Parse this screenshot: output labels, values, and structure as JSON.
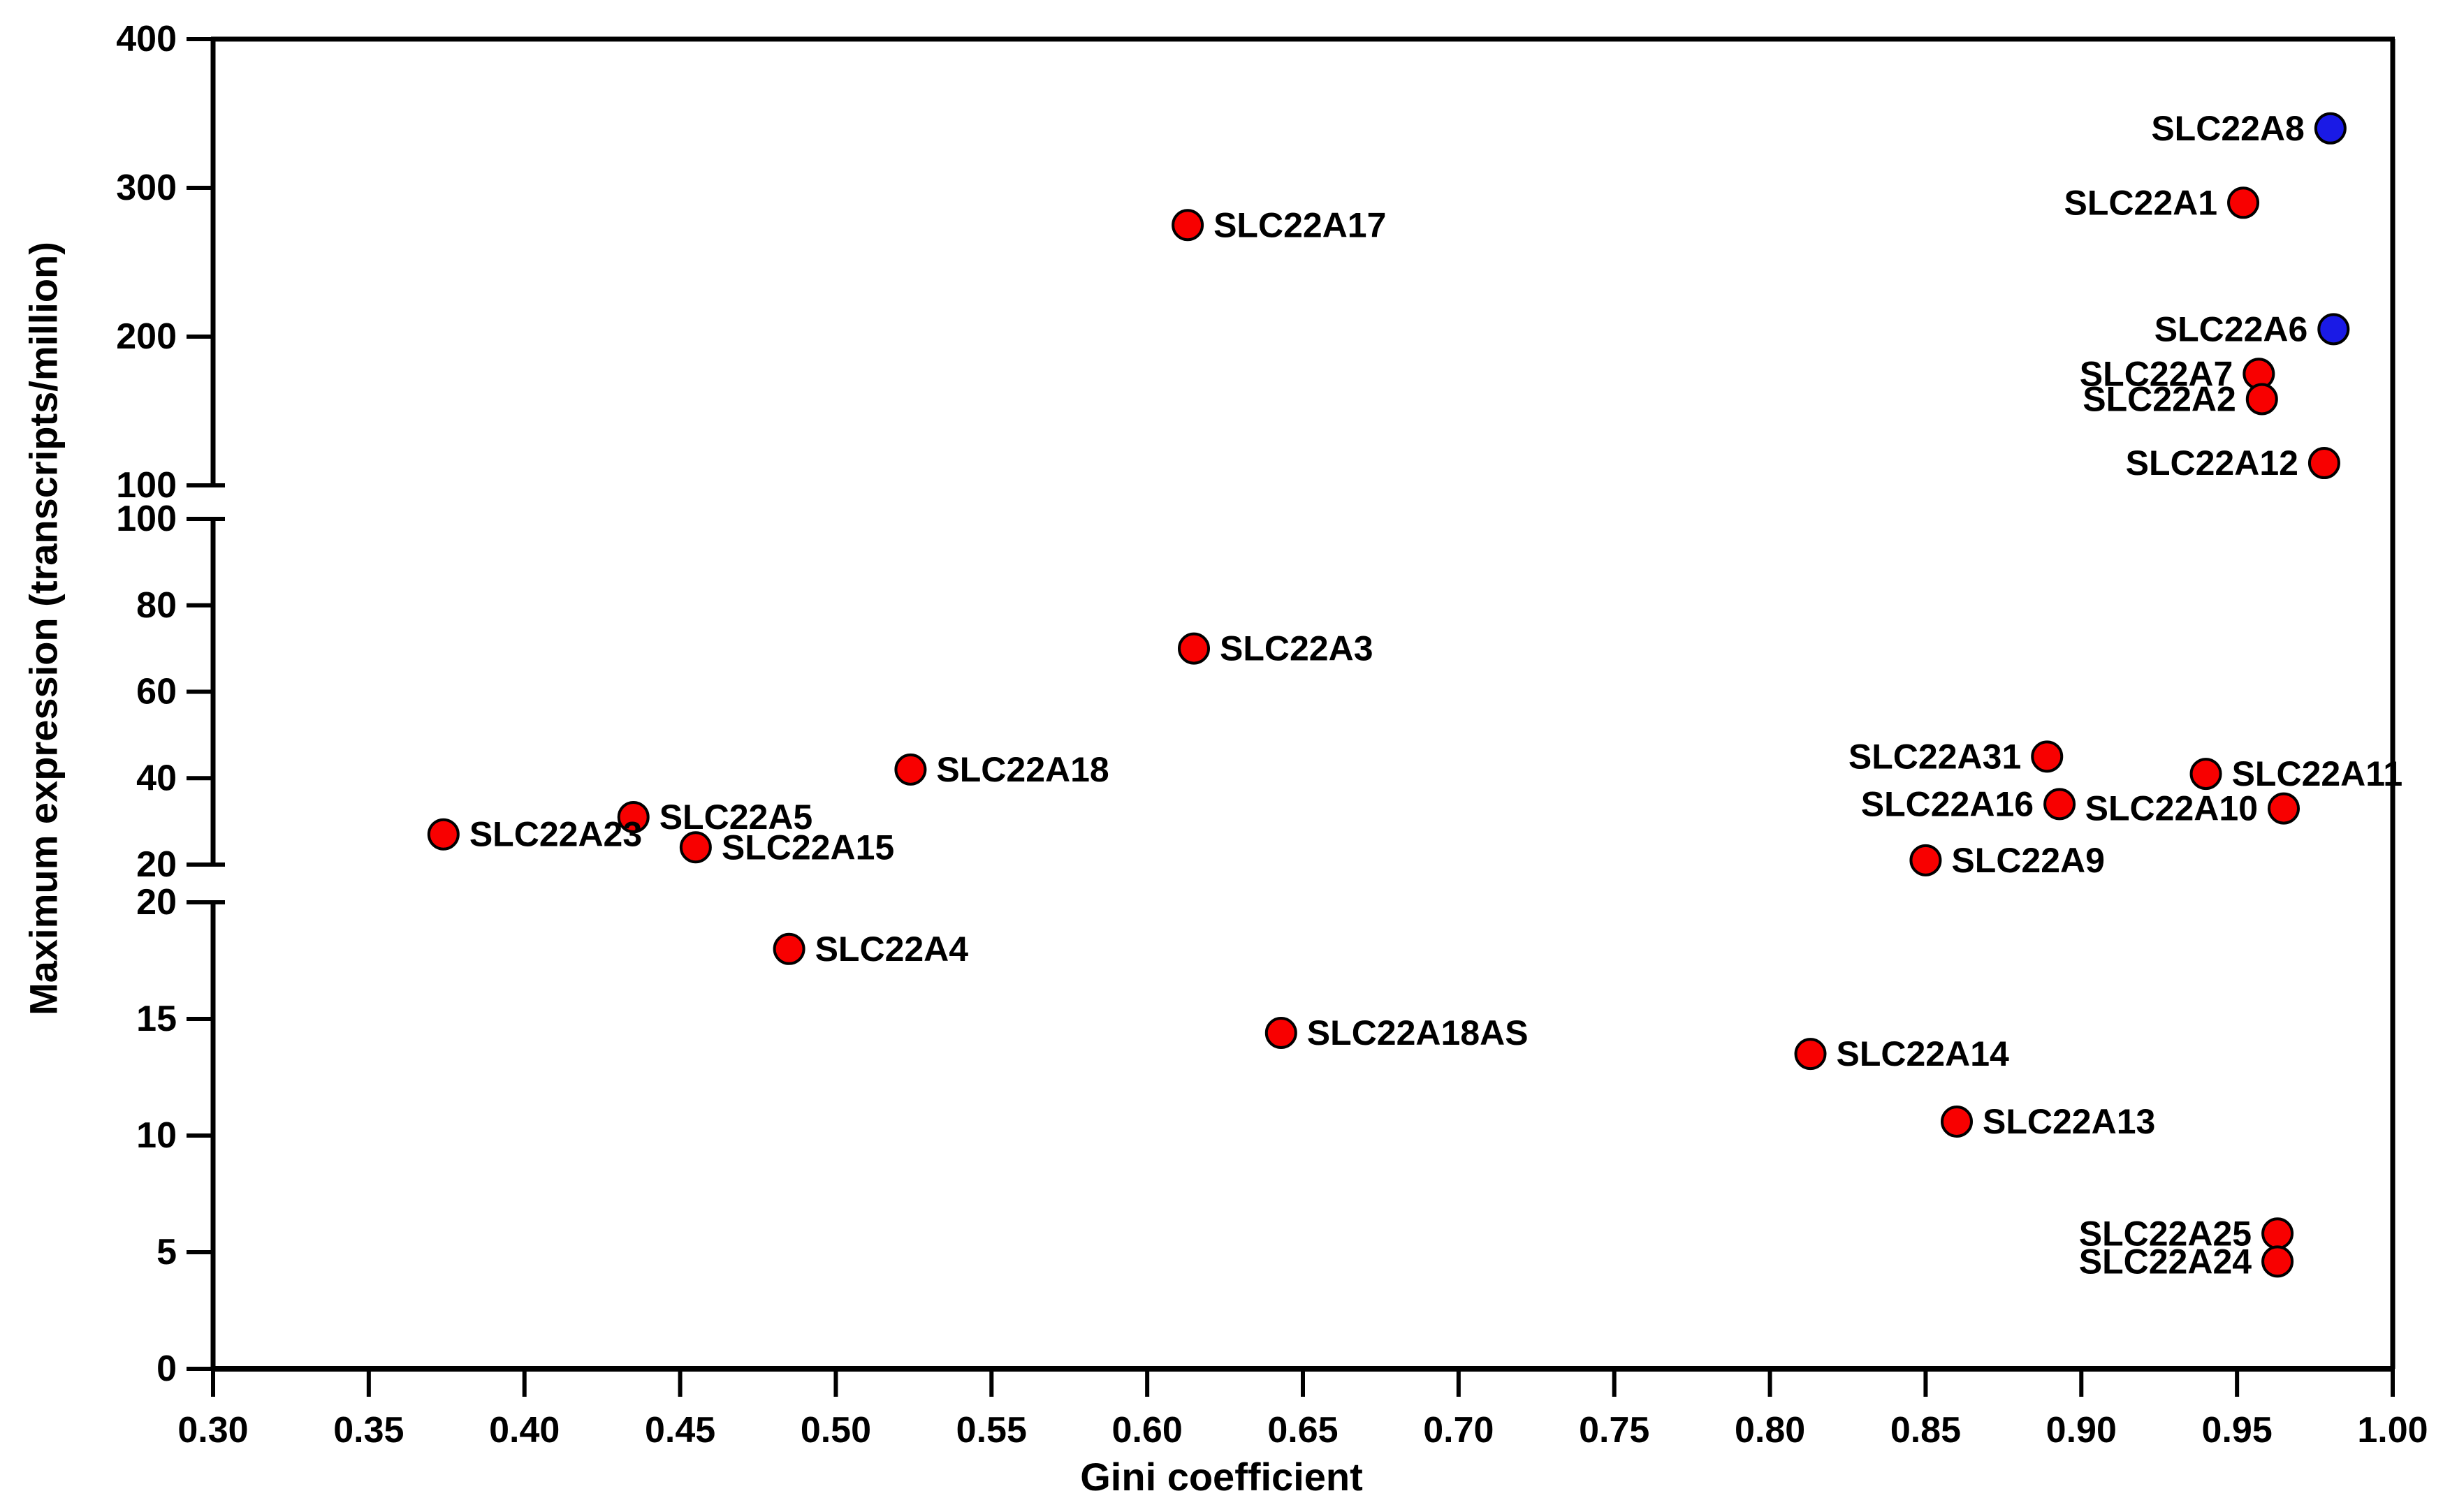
{
  "figure": {
    "background_color": "#ffffff",
    "frame_color": "#000000",
    "tick_label_color": "#000000"
  },
  "chart_data": {
    "type": "scatter",
    "title": "",
    "xlabel": "Gini coefficient",
    "ylabel": "Maximum expression (transcripts/million)",
    "x_axis": {
      "min": 0.3,
      "max": 1.0,
      "tick_step": 0.05,
      "tick_labels": [
        "0.30",
        "0.35",
        "0.40",
        "0.45",
        "0.50",
        "0.55",
        "0.60",
        "0.65",
        "0.70",
        "0.75",
        "0.80",
        "0.85",
        "0.90",
        "0.95",
        "1.00"
      ]
    },
    "y_axis": {
      "scale": "segmented-linear",
      "breaks_at": [
        20,
        100
      ],
      "segments": [
        {
          "from": 0,
          "to": 20,
          "ticks": [
            0,
            5,
            10,
            15,
            20
          ]
        },
        {
          "from": 20,
          "to": 100,
          "ticks": [
            20,
            40,
            60,
            80,
            100
          ]
        },
        {
          "from": 100,
          "to": 400,
          "ticks": [
            100,
            200,
            300,
            400
          ]
        }
      ],
      "tick_label_format": "integer"
    },
    "grid": false,
    "legend": "none",
    "marker": {
      "shape": "circle",
      "radius_px": 21,
      "edge_color": "#000000",
      "edge_width": 4
    },
    "series": [
      {
        "name": "blue-points",
        "color": "#1a1ae6",
        "points": [
          {
            "label": "SLC22A8",
            "x": 0.98,
            "y": 340,
            "label_side": "left"
          },
          {
            "label": "SLC22A6",
            "x": 0.981,
            "y": 205,
            "label_side": "left"
          }
        ]
      },
      {
        "name": "red-points",
        "color": "#f80000",
        "points": [
          {
            "label": "SLC22A1",
            "x": 0.952,
            "y": 290,
            "label_side": "left"
          },
          {
            "label": "SLC22A7",
            "x": 0.957,
            "y": 175,
            "label_side": "left"
          },
          {
            "label": "SLC22A2",
            "x": 0.958,
            "y": 158,
            "label_side": "left"
          },
          {
            "label": "SLC22A12",
            "x": 0.978,
            "y": 115,
            "label_side": "left"
          },
          {
            "label": "SLC22A17",
            "x": 0.613,
            "y": 275,
            "label_side": "right"
          },
          {
            "label": "SLC22A3",
            "x": 0.615,
            "y": 70,
            "label_side": "right"
          },
          {
            "label": "SLC22A31",
            "x": 0.889,
            "y": 45,
            "label_side": "left"
          },
          {
            "label": "SLC22A11",
            "x": 0.94,
            "y": 41,
            "label_side": "right"
          },
          {
            "label": "SLC22A18",
            "x": 0.524,
            "y": 42,
            "label_side": "right"
          },
          {
            "label": "SLC22A16",
            "x": 0.893,
            "y": 34,
            "label_side": "left"
          },
          {
            "label": "SLC22A10",
            "x": 0.965,
            "y": 33,
            "label_side": "left"
          },
          {
            "label": "SLC22A5",
            "x": 0.435,
            "y": 31,
            "label_side": "right"
          },
          {
            "label": "SLC22A23",
            "x": 0.374,
            "y": 27,
            "label_side": "right"
          },
          {
            "label": "SLC22A15",
            "x": 0.455,
            "y": 24,
            "label_side": "right"
          },
          {
            "label": "SLC22A9",
            "x": 0.85,
            "y": 21,
            "label_side": "right"
          },
          {
            "label": "SLC22A4",
            "x": 0.485,
            "y": 18,
            "label_side": "right"
          },
          {
            "label": "SLC22A18AS",
            "x": 0.643,
            "y": 14.4,
            "label_side": "right"
          },
          {
            "label": "SLC22A14",
            "x": 0.813,
            "y": 13.5,
            "label_side": "right"
          },
          {
            "label": "SLC22A13",
            "x": 0.86,
            "y": 10.6,
            "label_side": "right"
          },
          {
            "label": "SLC22A25",
            "x": 0.963,
            "y": 5.8,
            "label_side": "left"
          },
          {
            "label": "SLC22A24",
            "x": 0.963,
            "y": 4.6,
            "label_side": "left"
          }
        ]
      }
    ]
  }
}
